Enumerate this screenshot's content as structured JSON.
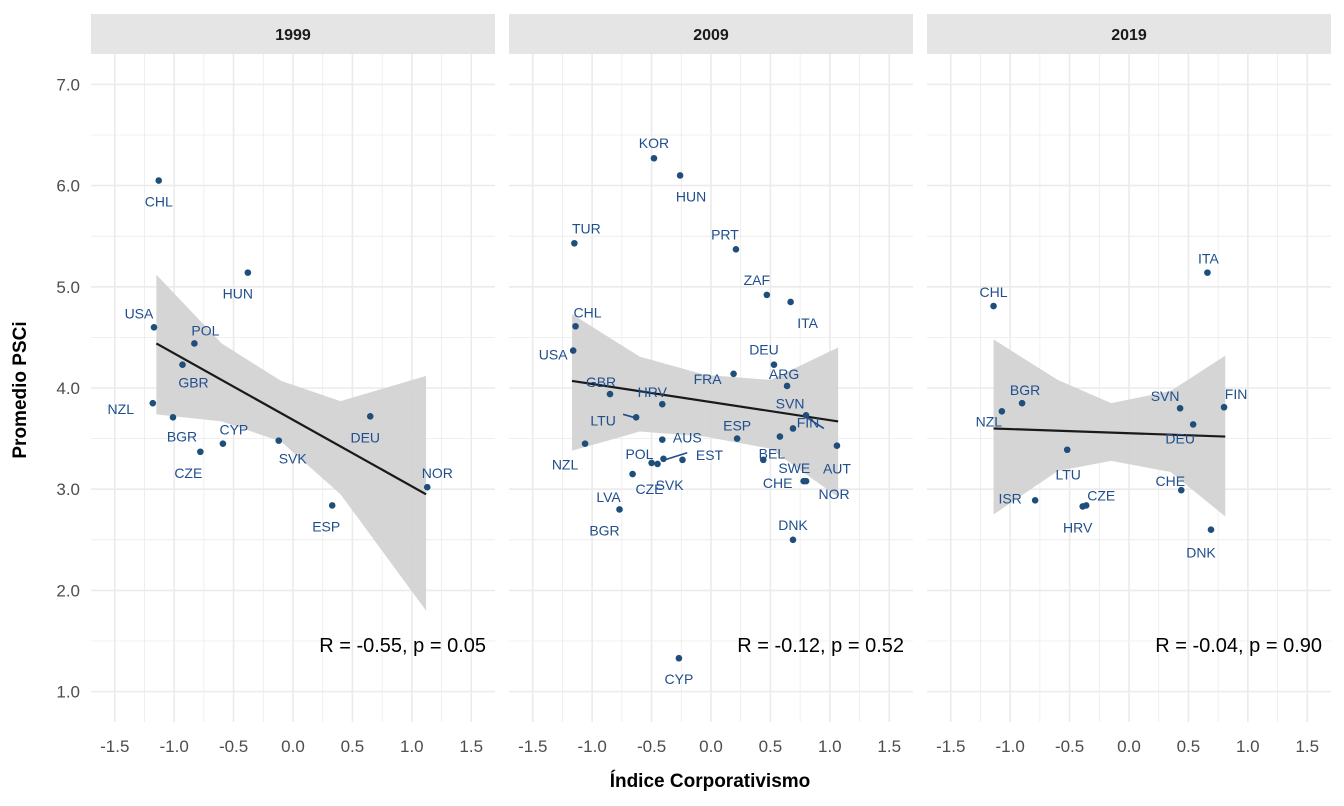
{
  "colors": {
    "point": "#1f4e7a",
    "label": "#1f4e8c",
    "ribbon": "#d3d3d3",
    "line": "#1a1a1a",
    "strip": "#e5e5e5",
    "grid": "#ebebeb"
  },
  "chart_data": {
    "type": "scatter",
    "xlabel": "Índice Corporativismo",
    "ylabel": "Promedio PSCi",
    "xlim": [
      -1.7,
      1.7
    ],
    "ylim": [
      0.7,
      7.3
    ],
    "x_ticks": [
      -1.5,
      -1.0,
      -0.5,
      0.0,
      0.5,
      1.0,
      1.5
    ],
    "x_tick_labels": [
      "-1.5",
      "-1.0",
      "-0.5",
      "0.0",
      "0.5",
      "1.0",
      "1.5"
    ],
    "y_ticks": [
      1,
      2,
      3,
      4,
      5,
      6,
      7
    ],
    "y_tick_labels": [
      "1.0",
      "2.0",
      "3.0",
      "4.0",
      "5.0",
      "6.0",
      "7.0"
    ],
    "grid": true,
    "panels": [
      {
        "title": "1999",
        "stat": "R = -0.55, p = 0.05",
        "fit": {
          "x": [
            -1.15,
            1.12
          ],
          "y": [
            4.44,
            2.95
          ]
        },
        "ribbon": [
          {
            "x": -1.15,
            "lo": 3.74,
            "hi": 5.12
          },
          {
            "x": -0.6,
            "lo": 3.67,
            "hi": 4.44
          },
          {
            "x": -0.1,
            "lo": 3.47,
            "hi": 4.07
          },
          {
            "x": 0.4,
            "lo": 2.95,
            "hi": 3.87
          },
          {
            "x": 1.12,
            "lo": 1.8,
            "hi": 4.12
          }
        ],
        "points": [
          {
            "label": "CHL",
            "x": -1.13,
            "y": 6.05
          },
          {
            "label": "HUN",
            "x": -0.38,
            "y": 5.14
          },
          {
            "label": "USA",
            "x": -1.17,
            "y": 4.6
          },
          {
            "label": "POL",
            "x": -0.83,
            "y": 4.44
          },
          {
            "label": "GBR",
            "x": -0.93,
            "y": 4.23
          },
          {
            "label": "NZL",
            "x": -1.18,
            "y": 3.85
          },
          {
            "label": "BGR",
            "x": -1.01,
            "y": 3.71
          },
          {
            "label": "CYP",
            "x": -0.59,
            "y": 3.45
          },
          {
            "label": "CZE",
            "x": -0.78,
            "y": 3.37
          },
          {
            "label": "SVK",
            "x": -0.12,
            "y": 3.48
          },
          {
            "label": "DEU",
            "x": 0.65,
            "y": 3.72
          },
          {
            "label": "ESP",
            "x": 0.33,
            "y": 2.84
          },
          {
            "label": "NOR",
            "x": 1.13,
            "y": 3.02
          }
        ]
      },
      {
        "title": "2009",
        "stat": "R = -0.12, p = 0.52",
        "fit": {
          "x": [
            -1.17,
            1.07
          ],
          "y": [
            4.07,
            3.67
          ]
        },
        "ribbon": [
          {
            "x": -1.17,
            "lo": 3.38,
            "hi": 4.73
          },
          {
            "x": -0.6,
            "lo": 3.57,
            "hi": 4.31
          },
          {
            "x": -0.05,
            "lo": 3.52,
            "hi": 4.13
          },
          {
            "x": 0.5,
            "lo": 3.4,
            "hi": 4.08
          },
          {
            "x": 1.07,
            "lo": 2.92,
            "hi": 4.4
          }
        ],
        "points": [
          {
            "label": "KOR",
            "x": -0.48,
            "y": 6.27
          },
          {
            "label": "HUN",
            "x": -0.26,
            "y": 6.1
          },
          {
            "label": "TUR",
            "x": -1.15,
            "y": 5.43
          },
          {
            "label": "PRT",
            "x": 0.21,
            "y": 5.37
          },
          {
            "label": "ZAF",
            "x": 0.47,
            "y": 4.92
          },
          {
            "label": "ITA",
            "x": 0.67,
            "y": 4.85
          },
          {
            "label": "CHL",
            "x": -1.14,
            "y": 4.61
          },
          {
            "label": "USA",
            "x": -1.16,
            "y": 4.37
          },
          {
            "label": "DEU",
            "x": 0.53,
            "y": 4.23
          },
          {
            "label": "ARG",
            "x": 0.64,
            "y": 4.02
          },
          {
            "label": "GBR",
            "x": -0.85,
            "y": 3.94
          },
          {
            "label": "HRV",
            "x": -0.41,
            "y": 3.84
          },
          {
            "label": "FRA",
            "x": 0.19,
            "y": 4.14
          },
          {
            "label": "SVN",
            "x": 0.8,
            "y": 3.73
          },
          {
            "label": "LTU",
            "x": -0.63,
            "y": 3.71
          },
          {
            "label": "ESP",
            "x": 0.22,
            "y": 3.5
          },
          {
            "label": "AUS",
            "x": -0.41,
            "y": 3.49
          },
          {
            "label": "NZL",
            "x": -1.06,
            "y": 3.45
          },
          {
            "label": "FIN",
            "x": 0.69,
            "y": 3.6
          },
          {
            "label": "BEL",
            "x": 0.58,
            "y": 3.52
          },
          {
            "label": "POL",
            "x": -0.4,
            "y": 3.3
          },
          {
            "label": "EST",
            "x": -0.24,
            "y": 3.29
          },
          {
            "label": "AUT",
            "x": 1.06,
            "y": 3.43
          },
          {
            "label": "SWE",
            "x": 0.44,
            "y": 3.29
          },
          {
            "label": "LVA",
            "x": -0.66,
            "y": 3.15
          },
          {
            "label": "CZE",
            "x": -0.45,
            "y": 3.25
          },
          {
            "label": "SVK",
            "x": -0.5,
            "y": 3.26
          },
          {
            "label": "CHE",
            "x": 0.78,
            "y": 3.08
          },
          {
            "label": "NOR",
            "x": 0.8,
            "y": 3.08
          },
          {
            "label": "BGR",
            "x": -0.77,
            "y": 2.8
          },
          {
            "label": "DNK",
            "x": 0.69,
            "y": 2.5
          },
          {
            "label": "CYP",
            "x": -0.27,
            "y": 1.33
          }
        ]
      },
      {
        "title": "2019",
        "stat": "R = -0.04, p = 0.90",
        "fit": {
          "x": [
            -1.14,
            0.81
          ],
          "y": [
            3.6,
            3.52
          ]
        },
        "ribbon": [
          {
            "x": -1.14,
            "lo": 2.75,
            "hi": 4.48
          },
          {
            "x": -0.6,
            "lo": 3.18,
            "hi": 4.08
          },
          {
            "x": -0.15,
            "lo": 3.28,
            "hi": 3.85
          },
          {
            "x": 0.35,
            "lo": 3.17,
            "hi": 3.97
          },
          {
            "x": 0.81,
            "lo": 2.73,
            "hi": 4.32
          }
        ],
        "points": [
          {
            "label": "ITA",
            "x": 0.66,
            "y": 5.14
          },
          {
            "label": "CHL",
            "x": -1.14,
            "y": 4.81
          },
          {
            "label": "BGR",
            "x": -0.9,
            "y": 3.85
          },
          {
            "label": "NZL",
            "x": -1.07,
            "y": 3.77
          },
          {
            "label": "SVN",
            "x": 0.43,
            "y": 3.8
          },
          {
            "label": "FIN",
            "x": 0.8,
            "y": 3.81
          },
          {
            "label": "DEU",
            "x": 0.54,
            "y": 3.64
          },
          {
            "label": "LTU",
            "x": -0.52,
            "y": 3.39
          },
          {
            "label": "CHE",
            "x": 0.44,
            "y": 2.99
          },
          {
            "label": "CZE",
            "x": -0.36,
            "y": 2.84
          },
          {
            "label": "HRV",
            "x": -0.39,
            "y": 2.83
          },
          {
            "label": "ISR",
            "x": -0.79,
            "y": 2.89
          },
          {
            "label": "DNK",
            "x": 0.69,
            "y": 2.6
          }
        ]
      }
    ]
  }
}
